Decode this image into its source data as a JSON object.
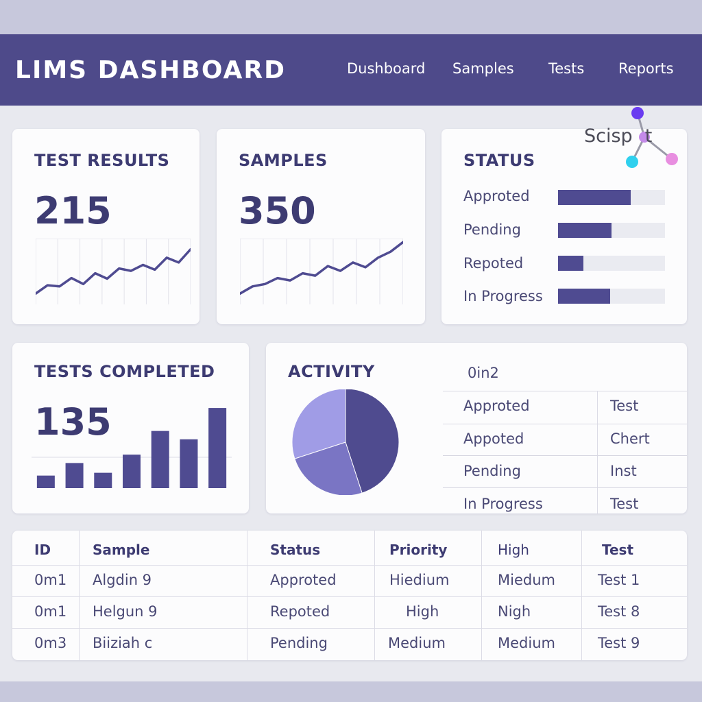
{
  "app": {
    "title": "LIMS DASHBOARD"
  },
  "nav": [
    "Dushboard",
    "Samples",
    "Tests",
    "Reports"
  ],
  "logo": {
    "text": "Scisp",
    "text_end": "t"
  },
  "cards": {
    "test_results": {
      "title": "TEST RESULTS",
      "value": "215"
    },
    "samples": {
      "title": "SAMPLES",
      "value": "350"
    },
    "status": {
      "title": "STATUS",
      "items": [
        {
          "label": "Approted",
          "level": 0.68
        },
        {
          "label": "Pending",
          "level": 0.5
        },
        {
          "label": "Repoted",
          "level": 0.24
        },
        {
          "label": "In Progress",
          "level": 0.49
        }
      ]
    },
    "tests_completed": {
      "title": "TESTS COMPLETED",
      "value": "135"
    },
    "activity": {
      "title": "ACTIVITY",
      "header": "0in2",
      "rows": [
        {
          "a": "Approted",
          "b": "Test"
        },
        {
          "a": "Appoted",
          "b": "Chert"
        },
        {
          "a": "Pending",
          "b": "Inst"
        },
        {
          "a": "In Progress",
          "b": "Test"
        }
      ]
    }
  },
  "table": {
    "headers": [
      "ID",
      "Sample",
      "Status",
      "Priority",
      "High",
      "Test"
    ],
    "rows": [
      [
        "0m1",
        "Algdin 9",
        "Approted",
        "Hiedium",
        "Miedum",
        "Test 1"
      ],
      [
        "0m1",
        "Helgun 9",
        "Repoted",
        "High",
        "Nigh",
        "Test 8"
      ],
      [
        "0m3",
        "Biiziah c",
        "Pending",
        "Medium",
        "Medium",
        "Test 9"
      ]
    ]
  },
  "chart_data": [
    {
      "type": "line",
      "values": [
        18,
        32,
        30,
        44,
        34,
        52,
        43,
        60,
        56,
        66,
        58,
        78,
        70,
        92
      ],
      "ylim": [
        0,
        110
      ],
      "grid": true
    },
    {
      "type": "line",
      "values": [
        18,
        30,
        34,
        44,
        40,
        52,
        48,
        64,
        56,
        70,
        62,
        78,
        88,
        104
      ],
      "ylim": [
        0,
        110
      ],
      "grid": true
    },
    {
      "type": "bar",
      "values": [
        18,
        36,
        22,
        48,
        82,
        70,
        115
      ],
      "ylim": [
        0,
        120
      ]
    },
    {
      "type": "pie",
      "values": [
        45,
        25,
        30
      ],
      "colors": [
        "#4f4b8f",
        "#7a75c4",
        "#a09ce6"
      ]
    }
  ],
  "colors": {
    "header": "#4e4a8a",
    "accent": "#4f4b91",
    "track": "#eaebf1"
  }
}
